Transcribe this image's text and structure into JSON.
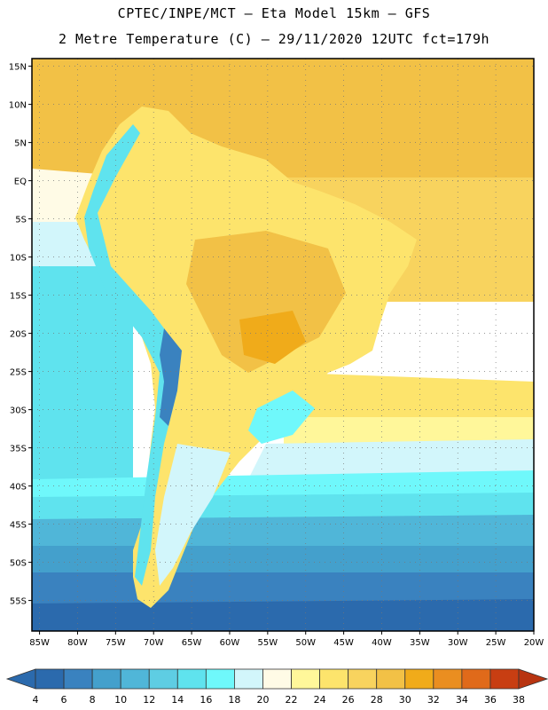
{
  "header": {
    "title_line1": "CPTEC/INPE/MCT –  Eta Model 15km – GFS",
    "title_line2": "2 Metre Temperature (C) – 29/11/2020 12UTC fct=179h"
  },
  "map": {
    "lat_ticks": [
      "15N",
      "10N",
      "5N",
      "EQ",
      "5S",
      "10S",
      "15S",
      "20S",
      "25S",
      "30S",
      "35S",
      "40S",
      "45S",
      "50S",
      "55S"
    ],
    "lon_ticks": [
      "85W",
      "80W",
      "75W",
      "70W",
      "65W",
      "60W",
      "55W",
      "50W",
      "45W",
      "40W",
      "35W",
      "30W",
      "25W",
      "20W"
    ],
    "lon_range": [
      -86,
      -20
    ],
    "lat_range": [
      -59,
      16
    ]
  },
  "colorbar": {
    "labels": [
      "4",
      "6",
      "8",
      "10",
      "12",
      "14",
      "16",
      "18",
      "20",
      "22",
      "24",
      "26",
      "28",
      "30",
      "32",
      "34",
      "36",
      "38"
    ],
    "colors": [
      "#2b6aad",
      "#3a82bf",
      "#44a0cc",
      "#50b6d8",
      "#5ecde3",
      "#5fe3ee",
      "#6ff8fb",
      "#d2f6fb",
      "#fffbe6",
      "#fff79a",
      "#fde46c",
      "#f8d35e",
      "#f2c146",
      "#f0ab1a",
      "#ea8e20",
      "#e06a1a",
      "#c83e12",
      "#b83410"
    ]
  }
}
